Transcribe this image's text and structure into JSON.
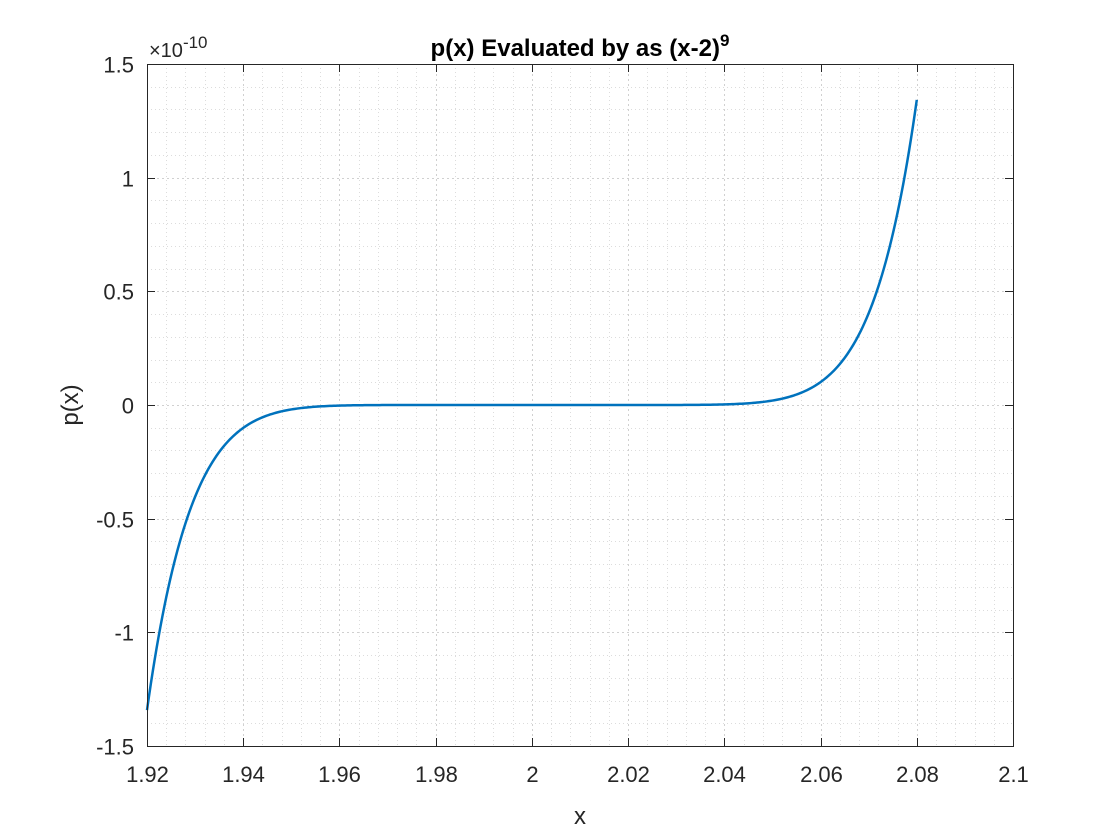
{
  "chart_data": {
    "type": "line",
    "title": "p(x) Evaluated by as (x-2)",
    "title_superscript": "9",
    "xlabel": "x",
    "ylabel": "p(x)",
    "xlim": [
      1.92,
      2.1
    ],
    "ylim": [
      -1.5,
      1.5
    ],
    "y_exponent_prefix": "×10",
    "y_exponent": "-10",
    "x_ticks": [
      "1.92",
      "1.94",
      "1.96",
      "1.98",
      "2",
      "2.02",
      "2.04",
      "2.06",
      "2.08",
      "2.1"
    ],
    "y_ticks": [
      "1.5",
      "1",
      "0.5",
      "0",
      "-0.5",
      "-1",
      "-1.5"
    ],
    "grid": true,
    "minor_grid": true,
    "series": [
      {
        "color": "#0072BD",
        "x_range": [
          1.92,
          2.08
        ],
        "points": [
          [
            1.92,
            -1.342
          ],
          [
            1.925,
            -0.621
          ],
          [
            1.93,
            -0.269
          ],
          [
            1.935,
            -0.106
          ],
          [
            1.94,
            -0.038
          ],
          [
            1.945,
            -0.012
          ],
          [
            1.95,
            -0.003
          ],
          [
            1.955,
            -0.0008
          ],
          [
            1.96,
            -0.0001
          ],
          [
            1.97,
            0.0
          ],
          [
            1.98,
            0.0
          ],
          [
            1.99,
            0.0
          ],
          [
            2.0,
            0.0
          ],
          [
            2.01,
            0.0
          ],
          [
            2.02,
            0.0
          ],
          [
            2.03,
            0.0
          ],
          [
            2.04,
            0.0001
          ],
          [
            2.045,
            0.0008
          ],
          [
            2.05,
            0.003
          ],
          [
            2.055,
            0.012
          ],
          [
            2.06,
            0.038
          ],
          [
            2.065,
            0.106
          ],
          [
            2.07,
            0.269
          ],
          [
            2.075,
            0.621
          ],
          [
            2.08,
            1.342
          ]
        ]
      }
    ]
  }
}
